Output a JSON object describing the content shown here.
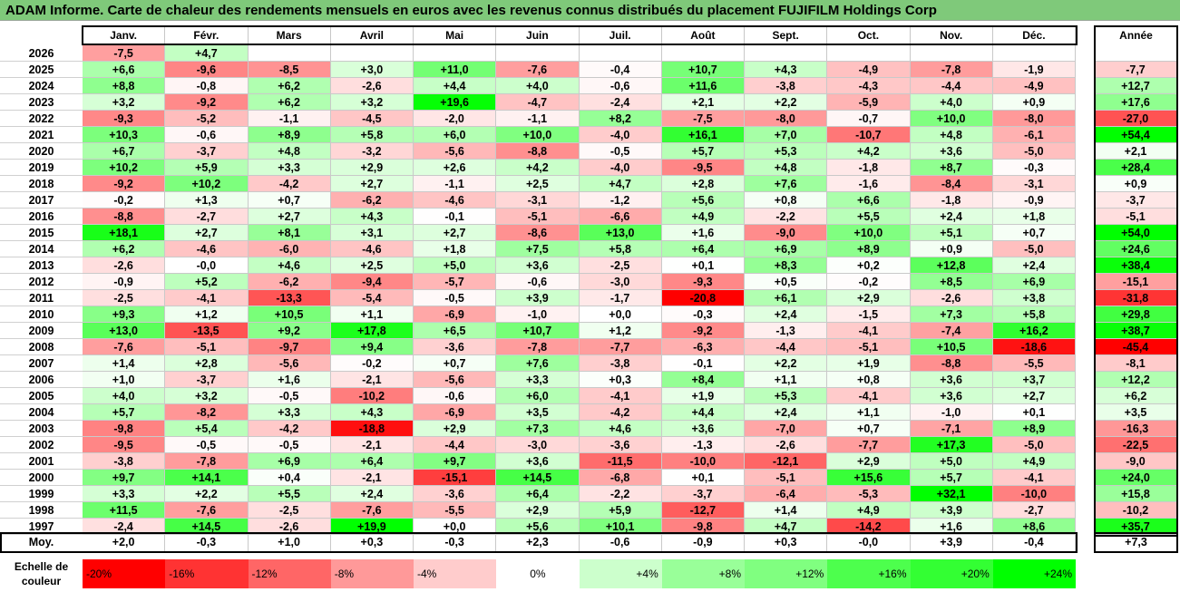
{
  "title": "ADAM Informe. Carte de chaleur des rendements mensuels en euros avec les revenus connus distribués du placement FUJIFILM Holdings Corp",
  "chart_data": {
    "type": "heatmap",
    "months": [
      "Janv.",
      "Févr.",
      "Mars",
      "Avril",
      "Mai",
      "Juin",
      "Juil.",
      "Août",
      "Sept.",
      "Oct.",
      "Nov.",
      "Déc."
    ],
    "year_header": "Année",
    "rows": [
      {
        "year": "2026",
        "values": [
          "-7,5",
          "+4,7",
          "",
          "",
          "",
          "",
          "",
          "",
          "",
          "",
          "",
          ""
        ],
        "annual": ""
      },
      {
        "year": "2025",
        "values": [
          "+6,6",
          "-9,6",
          "-8,5",
          "+3,0",
          "+11,0",
          "-7,6",
          "-0,4",
          "+10,7",
          "+4,3",
          "-4,9",
          "-7,8",
          "-1,9"
        ],
        "annual": "-7,7"
      },
      {
        "year": "2024",
        "values": [
          "+8,8",
          "-0,8",
          "+6,2",
          "-2,6",
          "+4,4",
          "+4,0",
          "-0,6",
          "+11,6",
          "-3,8",
          "-4,3",
          "-4,4",
          "-4,9"
        ],
        "annual": "+12,7"
      },
      {
        "year": "2023",
        "values": [
          "+3,2",
          "-9,2",
          "+6,2",
          "+3,2",
          "+19,6",
          "-4,7",
          "-2,4",
          "+2,1",
          "+2,2",
          "-5,9",
          "+4,0",
          "+0,9"
        ],
        "annual": "+17,6"
      },
      {
        "year": "2022",
        "values": [
          "-9,3",
          "-5,2",
          "-1,1",
          "-4,5",
          "-2,0",
          "-1,1",
          "+8,2",
          "-7,5",
          "-8,0",
          "-0,7",
          "+10,0",
          "-8,0"
        ],
        "annual": "-27,0"
      },
      {
        "year": "2021",
        "values": [
          "+10,3",
          "-0,6",
          "+8,9",
          "+5,8",
          "+6,0",
          "+10,0",
          "-4,0",
          "+16,1",
          "+7,0",
          "-10,7",
          "+4,8",
          "-6,1"
        ],
        "annual": "+54,4"
      },
      {
        "year": "2020",
        "values": [
          "+6,7",
          "-3,7",
          "+4,8",
          "-3,2",
          "-5,6",
          "-8,8",
          "-0,5",
          "+5,7",
          "+5,3",
          "+4,2",
          "+3,6",
          "-5,0"
        ],
        "annual": "+2,1"
      },
      {
        "year": "2019",
        "values": [
          "+10,2",
          "+5,9",
          "+3,3",
          "+2,9",
          "+2,6",
          "+4,2",
          "-4,0",
          "-9,5",
          "+4,8",
          "-1,8",
          "+8,7",
          "-0,3"
        ],
        "annual": "+28,4"
      },
      {
        "year": "2018",
        "values": [
          "-9,2",
          "+10,2",
          "-4,2",
          "+2,7",
          "-1,1",
          "+2,5",
          "+4,7",
          "+2,8",
          "+7,6",
          "-1,6",
          "-8,4",
          "-3,1"
        ],
        "annual": "+0,9"
      },
      {
        "year": "2017",
        "values": [
          "-0,2",
          "+1,3",
          "+0,7",
          "-6,2",
          "-4,6",
          "-3,1",
          "-1,2",
          "+5,6",
          "+0,8",
          "+6,6",
          "-1,8",
          "-0,9"
        ],
        "annual": "-3,7"
      },
      {
        "year": "2016",
        "values": [
          "-8,8",
          "-2,7",
          "+2,7",
          "+4,3",
          "-0,1",
          "-5,1",
          "-6,6",
          "+4,9",
          "-2,2",
          "+5,5",
          "+2,4",
          "+1,8"
        ],
        "annual": "-5,1"
      },
      {
        "year": "2015",
        "values": [
          "+18,1",
          "+2,7",
          "+8,1",
          "+3,1",
          "+2,7",
          "-8,6",
          "+13,0",
          "+1,6",
          "-9,0",
          "+10,0",
          "+5,1",
          "+0,7"
        ],
        "annual": "+54,0"
      },
      {
        "year": "2014",
        "values": [
          "+6,2",
          "-4,6",
          "-6,0",
          "-4,6",
          "+1,8",
          "+7,5",
          "+5,8",
          "+6,4",
          "+6,9",
          "+8,9",
          "+0,9",
          "-5,0"
        ],
        "annual": "+24,6"
      },
      {
        "year": "2013",
        "values": [
          "-2,6",
          "-0,0",
          "+4,6",
          "+2,5",
          "+5,0",
          "+3,6",
          "-2,5",
          "+0,1",
          "+8,3",
          "+0,2",
          "+12,8",
          "+2,4"
        ],
        "annual": "+38,4"
      },
      {
        "year": "2012",
        "values": [
          "-0,9",
          "+5,2",
          "-6,2",
          "-9,4",
          "-5,7",
          "-0,6",
          "-3,0",
          "-9,3",
          "+0,5",
          "-0,2",
          "+8,5",
          "+6,9"
        ],
        "annual": "-15,1"
      },
      {
        "year": "2011",
        "values": [
          "-2,5",
          "-4,1",
          "-13,3",
          "-5,4",
          "-0,5",
          "+3,9",
          "-1,7",
          "-20,8",
          "+6,1",
          "+2,9",
          "-2,6",
          "+3,8"
        ],
        "annual": "-31,8"
      },
      {
        "year": "2010",
        "values": [
          "+9,3",
          "+1,2",
          "+10,5",
          "+1,1",
          "-6,9",
          "-1,0",
          "+0,0",
          "-0,3",
          "+2,4",
          "-1,5",
          "+7,3",
          "+5,8"
        ],
        "annual": "+29,8"
      },
      {
        "year": "2009",
        "values": [
          "+13,0",
          "-13,5",
          "+9,2",
          "+17,8",
          "+6,5",
          "+10,7",
          "+1,2",
          "-9,2",
          "-1,3",
          "-4,1",
          "-7,4",
          "+16,2"
        ],
        "annual": "+38,7"
      },
      {
        "year": "2008",
        "values": [
          "-7,6",
          "-5,1",
          "-9,7",
          "+9,4",
          "-3,6",
          "-7,8",
          "-7,7",
          "-6,3",
          "-4,4",
          "-5,1",
          "+10,5",
          "-18,6"
        ],
        "annual": "-45,4"
      },
      {
        "year": "2007",
        "values": [
          "+1,4",
          "+2,8",
          "-5,6",
          "-0,2",
          "+0,7",
          "+7,6",
          "-3,8",
          "-0,1",
          "+2,2",
          "+1,9",
          "-8,8",
          "-5,5"
        ],
        "annual": "-8,1"
      },
      {
        "year": "2006",
        "values": [
          "+1,0",
          "-3,7",
          "+1,6",
          "-2,1",
          "-5,6",
          "+3,3",
          "+0,3",
          "+8,4",
          "+1,1",
          "+0,8",
          "+3,6",
          "+3,7"
        ],
        "annual": "+12,2"
      },
      {
        "year": "2005",
        "values": [
          "+4,0",
          "+3,2",
          "-0,5",
          "-10,2",
          "-0,6",
          "+6,0",
          "-4,1",
          "+1,9",
          "+5,3",
          "-4,1",
          "+3,6",
          "+2,7"
        ],
        "annual": "+6,2"
      },
      {
        "year": "2004",
        "values": [
          "+5,7",
          "-8,2",
          "+3,3",
          "+4,3",
          "-6,9",
          "+3,5",
          "-4,2",
          "+4,4",
          "+2,4",
          "+1,1",
          "-1,0",
          "+0,1"
        ],
        "annual": "+3,5"
      },
      {
        "year": "2003",
        "values": [
          "-9,8",
          "+5,4",
          "-4,2",
          "-18,8",
          "+2,9",
          "+7,3",
          "+4,6",
          "+3,6",
          "-7,0",
          "+0,7",
          "-7,1",
          "+8,9"
        ],
        "annual": "-16,3"
      },
      {
        "year": "2002",
        "values": [
          "-9,5",
          "-0,5",
          "-0,5",
          "-2,1",
          "-4,4",
          "-3,0",
          "-3,6",
          "-1,3",
          "-2,6",
          "-7,7",
          "+17,3",
          "-5,0"
        ],
        "annual": "-22,5"
      },
      {
        "year": "2001",
        "values": [
          "-3,8",
          "-7,8",
          "+6,9",
          "+6,4",
          "+9,7",
          "+3,6",
          "-11,5",
          "-10,0",
          "-12,1",
          "+2,9",
          "+5,0",
          "+4,9"
        ],
        "annual": "-9,0"
      },
      {
        "year": "2000",
        "values": [
          "+9,7",
          "+14,1",
          "+0,4",
          "-2,1",
          "-15,1",
          "+14,5",
          "-6,8",
          "+0,1",
          "-5,1",
          "+15,6",
          "+5,7",
          "-4,1"
        ],
        "annual": "+24,0"
      },
      {
        "year": "1999",
        "values": [
          "+3,3",
          "+2,2",
          "+5,5",
          "+2,4",
          "-3,6",
          "+6,4",
          "-2,2",
          "-3,7",
          "-6,4",
          "-5,3",
          "+32,1",
          "-10,0"
        ],
        "annual": "+15,8"
      },
      {
        "year": "1998",
        "values": [
          "+11,5",
          "-7,6",
          "-2,5",
          "-7,6",
          "-5,5",
          "+2,9",
          "+5,9",
          "-12,7",
          "+1,4",
          "+4,9",
          "+3,9",
          "-2,7"
        ],
        "annual": "-10,2"
      },
      {
        "year": "1997",
        "values": [
          "-2,4",
          "+14,5",
          "-2,6",
          "+19,9",
          "+0,0",
          "+5,6",
          "+10,1",
          "-9,8",
          "+4,7",
          "-14,2",
          "+1,6",
          "+8,6"
        ],
        "annual": "+35,7"
      }
    ],
    "average": {
      "label": "Moy.",
      "values": [
        "+2,0",
        "-0,3",
        "+1,0",
        "+0,3",
        "-0,3",
        "+2,3",
        "-0,6",
        "-0,9",
        "+0,3",
        "-0,0",
        "+3,9",
        "-0,4"
      ],
      "annual": "+7,3"
    },
    "color_scale": {
      "label": "Echelle de couleur",
      "stops": [
        {
          "label": "-20%",
          "value": -20,
          "color": "#ff0000",
          "align": "left"
        },
        {
          "label": "-16%",
          "value": -16,
          "color": "#ff3333",
          "align": "left"
        },
        {
          "label": "-12%",
          "value": -12,
          "color": "#ff6666",
          "align": "left"
        },
        {
          "label": "-8%",
          "value": -8,
          "color": "#ff9999",
          "align": "left"
        },
        {
          "label": "-4%",
          "value": -4,
          "color": "#ffcccc",
          "align": "left"
        },
        {
          "label": "0%",
          "value": 0,
          "color": "#ffffff",
          "align": "center"
        },
        {
          "label": "+4%",
          "value": 4,
          "color": "#ccffcc",
          "align": "right"
        },
        {
          "label": "+8%",
          "value": 8,
          "color": "#99ff99",
          "align": "right"
        },
        {
          "label": "+12%",
          "value": 12,
          "color": "#80ff80",
          "align": "right"
        },
        {
          "label": "+16%",
          "value": 16,
          "color": "#4dff4d",
          "align": "right"
        },
        {
          "label": "+20%",
          "value": 20,
          "color": "#33ff33",
          "align": "right"
        },
        {
          "label": "+24%",
          "value": 24,
          "color": "#00ff00",
          "align": "right"
        }
      ]
    }
  }
}
